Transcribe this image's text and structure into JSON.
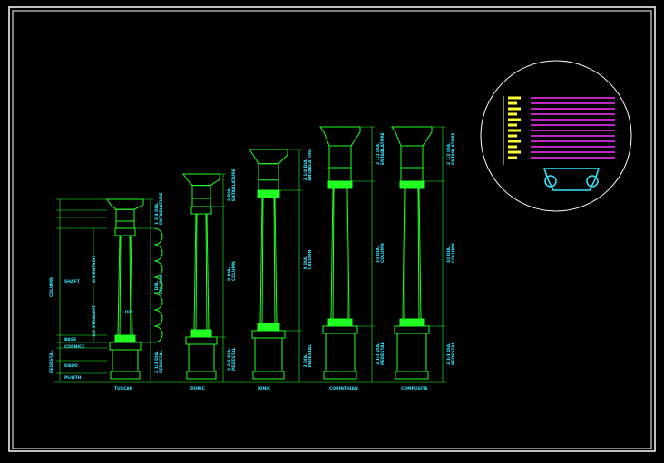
{
  "orders": [
    {
      "name": "TUSCAN",
      "entablature": "1 3/4 DIA.",
      "entablature_label": "ENTABLATURE",
      "column": "7 DIA.",
      "column_label": "COLUMN",
      "pedestal": "2 1/3 DIA.",
      "pedestal_label": "PEDESTAL"
    },
    {
      "name": "DORIC",
      "entablature": "2 DIA.",
      "entablature_label": "ENTABLATURE",
      "column": "8 DIA.",
      "column_label": "COLUMN",
      "pedestal": "2 2/3 DIA.",
      "pedestal_label": "PEDESTAL"
    },
    {
      "name": "IONIC",
      "entablature": "2 1/4 DIA.",
      "entablature_label": "ENTABLATURE",
      "column": "9 DIA.",
      "column_label": "COLUMN",
      "pedestal": "3 DIA.",
      "pedestal_label": "PEDESTAL"
    },
    {
      "name": "CORINTHIAN",
      "entablature": "2 1/2 DIA.",
      "entablature_label": "ENTABLATURE",
      "column": "10 DIA.",
      "column_label": "COLUMN",
      "pedestal": "3 1/3 DIA.",
      "pedestal_label": "PEDESTAL"
    },
    {
      "name": "COMPOSITE",
      "entablature": "2 1/2 DIA.",
      "entablature_label": "ENTABLATURE",
      "column": "10 DIA.",
      "column_label": "COLUMN",
      "pedestal": "3 1/3 DIA.",
      "pedestal_label": "PEDESTAL"
    }
  ],
  "parts": {
    "column": "COLUMN",
    "pedestal": "PEDESTAL",
    "shaft": "SHAFT",
    "base": "BASE",
    "cornice": "CORNICE",
    "dado": "DADO",
    "plinth": "PLINTH",
    "entasis": "2/3 ENTASIS",
    "straight": "1/3 STRAIGHT",
    "diameter": "1 DIA."
  },
  "colors": {
    "background": "#000000",
    "frame": "#ffffff",
    "lines": "#22ff22",
    "text": "#33e8ff",
    "detail_magenta": "#ff33ff",
    "detail_yellow": "#ffff33",
    "detail_cyan": "#33e8ff"
  }
}
